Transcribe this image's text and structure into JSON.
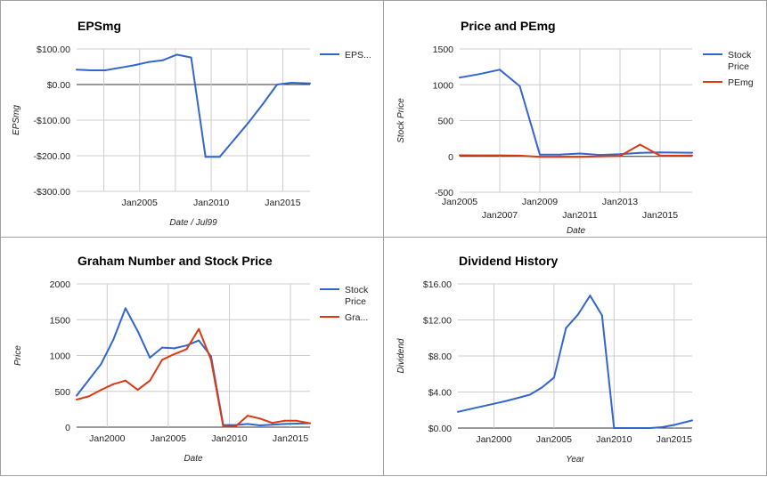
{
  "colors": {
    "blue": "#3366cc",
    "red": "#dc3912",
    "grid": "#cccccc",
    "zero": "#333333"
  },
  "chart_data": [
    {
      "type": "line",
      "title": "EPSmg",
      "xlabel": "Date / Jul99",
      "ylabel": "EPSmg",
      "xlim": [
        2000.6,
        2016.9
      ],
      "ylim": [
        -300,
        100
      ],
      "yticks": [
        100,
        0,
        -100,
        -200,
        -300
      ],
      "ytick_labels": [
        "$100.00",
        "$0.00",
        "-$100.00",
        "-$200.00",
        "-$300.00"
      ],
      "xticks": [
        2005,
        2010,
        2015
      ],
      "xtick_labels": [
        "Jan2005",
        "Jan2010",
        "Jan2015"
      ],
      "xgrid": [
        2002.5,
        2005,
        2007.5,
        2010,
        2012.5,
        2015
      ],
      "legend": "right",
      "series": [
        {
          "name": "EPS...",
          "color": "blue",
          "x": [
            2000.6,
            2001.6,
            2002.6,
            2003.6,
            2004.6,
            2005.6,
            2006.6,
            2007.6,
            2008.6,
            2009.6,
            2010.6,
            2011.6,
            2012.6,
            2013.6,
            2014.6,
            2015.6,
            2016.9
          ],
          "y": [
            42,
            40,
            40,
            47,
            54,
            63,
            68,
            84,
            76,
            -203,
            -203,
            -155,
            -107,
            -55,
            0,
            5,
            3
          ]
        }
      ]
    },
    {
      "type": "line",
      "title": "Price and PEmg",
      "xlabel": "Date",
      "ylabel": "Stock Price",
      "xlim": [
        2005,
        2016.6
      ],
      "ylim": [
        -500,
        1500
      ],
      "yticks": [
        1500,
        1000,
        500,
        0,
        -500
      ],
      "ytick_labels": [
        "1500",
        "1000",
        "500",
        "0",
        "-500"
      ],
      "xticks": [
        2005,
        2007,
        2009,
        2011,
        2013,
        2015
      ],
      "xtick_labels": [
        "Jan2005",
        "Jan2007",
        "Jan2009",
        "Jan2011",
        "Jan2013",
        "Jan2015"
      ],
      "xgrid": [
        2007,
        2009,
        2011,
        2013,
        2015
      ],
      "legend": "right",
      "series": [
        {
          "name": "Stock Price",
          "legend_lines": [
            "Stock",
            "Price"
          ],
          "color": "blue",
          "x": [
            2005,
            2006,
            2007,
            2008,
            2009,
            2010,
            2011,
            2012,
            2013,
            2014,
            2015,
            2016.6
          ],
          "y": [
            1100,
            1150,
            1210,
            980,
            25,
            25,
            40,
            20,
            30,
            50,
            55,
            52
          ]
        },
        {
          "name": "PEmg",
          "legend_lines": [
            "PEmg"
          ],
          "color": "red",
          "x": [
            2005,
            2006,
            2007,
            2008,
            2009,
            2010,
            2011,
            2012,
            2013,
            2014,
            2015,
            2016.6
          ],
          "y": [
            15,
            14,
            14,
            10,
            -5,
            -5,
            -5,
            0,
            5,
            165,
            10,
            12
          ]
        }
      ]
    },
    {
      "type": "line",
      "title": "Graham Number and Stock Price",
      "xlabel": "Date",
      "ylabel": "Price",
      "xlim": [
        1997.5,
        2016.6
      ],
      "ylim": [
        0,
        2000
      ],
      "yticks": [
        2000,
        1500,
        1000,
        500,
        0
      ],
      "ytick_labels": [
        "2000",
        "1500",
        "1000",
        "500",
        "0"
      ],
      "xticks": [
        2000,
        2005,
        2010,
        2015
      ],
      "xtick_labels": [
        "Jan2000",
        "Jan2005",
        "Jan2010",
        "Jan2015"
      ],
      "xgrid": [
        2000,
        2005,
        2010,
        2015
      ],
      "legend": "right",
      "series": [
        {
          "name": "Stock Price",
          "legend_lines": [
            "Stock",
            "Price"
          ],
          "color": "blue",
          "x": [
            1997.5,
            1998.5,
            1999.5,
            2000.5,
            2001.5,
            2002.5,
            2003.5,
            2004.5,
            2005.5,
            2006.5,
            2007.5,
            2008.5,
            2009.5,
            2010.5,
            2011.5,
            2012.5,
            2013.5,
            2014.5,
            2015.5,
            2016.6
          ],
          "y": [
            440,
            660,
            880,
            1220,
            1660,
            1340,
            970,
            1110,
            1100,
            1140,
            1210,
            990,
            30,
            30,
            45,
            25,
            35,
            45,
            50,
            55
          ]
        },
        {
          "name": "Gra...",
          "legend_lines": [
            "Gra..."
          ],
          "color": "red",
          "x": [
            1997.5,
            1998.5,
            1999.5,
            2000.5,
            2001.5,
            2002.5,
            2003.5,
            2004.5,
            2005.5,
            2006.5,
            2007.5,
            2008.5,
            2009.5,
            2010.5,
            2011.5,
            2012.5,
            2013.5,
            2014.5,
            2015.5,
            2016.6
          ],
          "y": [
            385,
            430,
            520,
            600,
            650,
            520,
            650,
            940,
            1020,
            1090,
            1370,
            940,
            10,
            10,
            160,
            120,
            60,
            90,
            90,
            55
          ]
        }
      ]
    },
    {
      "type": "line",
      "title": "Dividend History",
      "xlabel": "Year",
      "ylabel": "Dividend",
      "xlim": [
        1997,
        2016.5
      ],
      "ylim": [
        0,
        16
      ],
      "yticks": [
        16,
        12,
        8,
        4,
        0
      ],
      "ytick_labels": [
        "$16.00",
        "$12.00",
        "$8.00",
        "$4.00",
        "$0.00"
      ],
      "xticks": [
        2000,
        2005,
        2010,
        2015
      ],
      "xtick_labels": [
        "Jan2000",
        "Jan2005",
        "Jan2010",
        "Jan2015"
      ],
      "xgrid": [
        2000,
        2005,
        2010,
        2015
      ],
      "legend": "none",
      "series": [
        {
          "name": "",
          "color": "blue",
          "x": [
            1997,
            1998,
            1999,
            2000,
            2001,
            2002,
            2003,
            2004,
            2005,
            2006,
            2007,
            2008,
            2009,
            2010,
            2011,
            2012,
            2013,
            2014,
            2015,
            2016.5
          ],
          "y": [
            1.8,
            2.1,
            2.4,
            2.7,
            3.0,
            3.35,
            3.7,
            4.5,
            5.6,
            11.1,
            12.6,
            14.7,
            12.5,
            0,
            0,
            0,
            0,
            0.1,
            0.35,
            0.85
          ]
        }
      ]
    }
  ]
}
